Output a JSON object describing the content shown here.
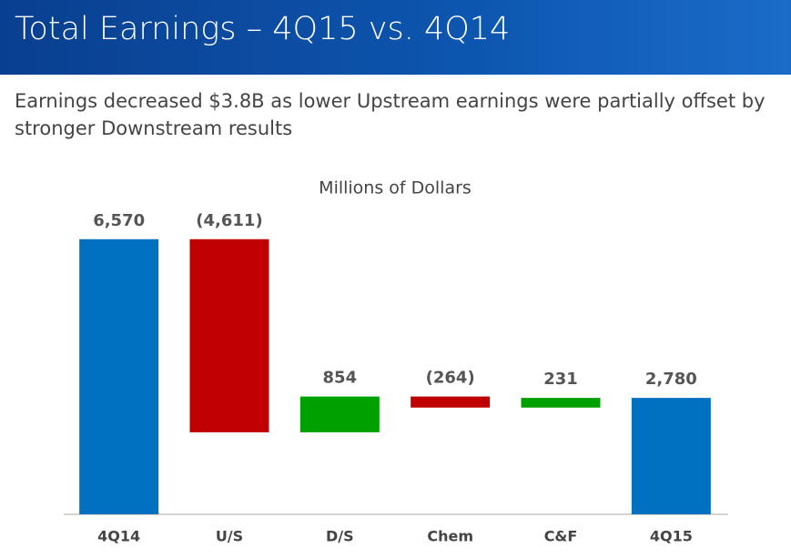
{
  "chart_data": {
    "type": "waterfall",
    "title": "Total Earnings – 4Q15 vs. 4Q14",
    "subtitle": "Earnings decreased $3.8B as lower Upstream earnings were partially offset by stronger Downstream results",
    "y_label": "Millions of Dollars",
    "categories": [
      "4Q14",
      "U/S",
      "D/S",
      "Chem",
      "C&F",
      "4Q15"
    ],
    "values": [
      6570,
      -4611,
      854,
      -264,
      231,
      2780
    ],
    "value_labels": [
      "6,570",
      "(4,611)",
      "854",
      "(264)",
      "231",
      "2,780"
    ],
    "bar_kinds": [
      "total",
      "relative",
      "relative",
      "relative",
      "relative",
      "total"
    ],
    "colors": [
      "#0070c0",
      "#c00000",
      "#00a000",
      "#c00000",
      "#00a000",
      "#0070c0"
    ],
    "ylim": [
      0,
      7000
    ]
  }
}
